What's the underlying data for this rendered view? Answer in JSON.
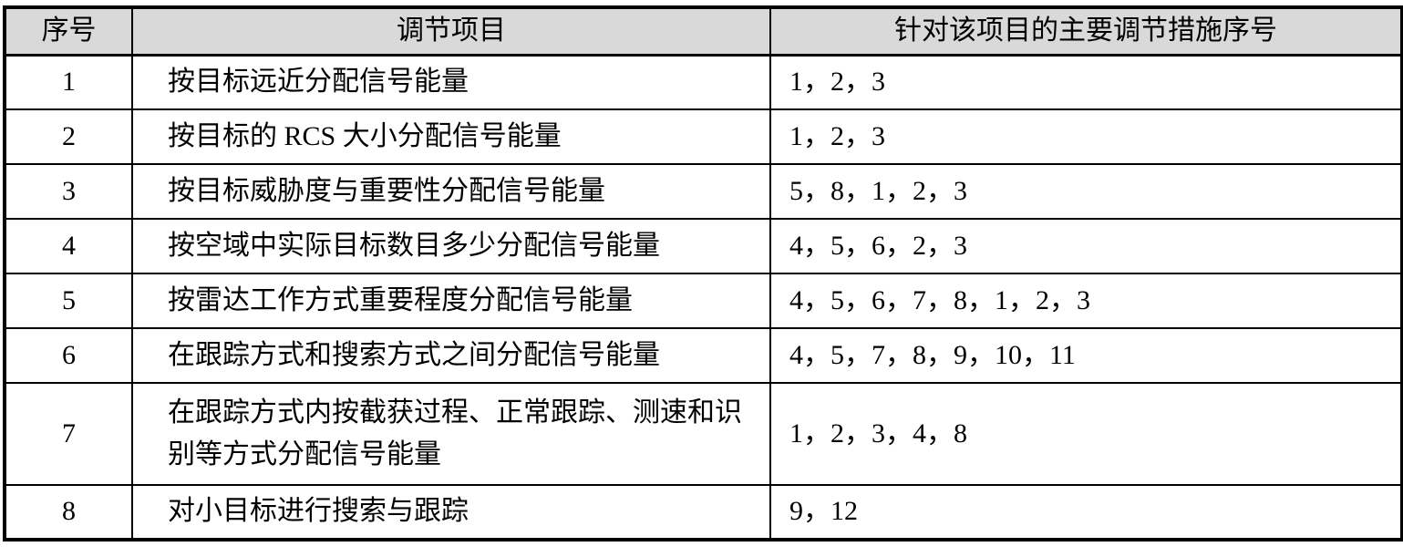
{
  "table": {
    "header_bg": "#d9d9d9",
    "border_color": "#000000",
    "headers": {
      "no": "序号",
      "item": "调节项目",
      "measures": "针对该项目的主要调节措施序号"
    },
    "rows": [
      {
        "no": "1",
        "item": "按目标远近分配信号能量",
        "measures": "1，2，3"
      },
      {
        "no": "2",
        "item": "按目标的 RCS 大小分配信号能量",
        "measures": "1，2，3"
      },
      {
        "no": "3",
        "item": "按目标威胁度与重要性分配信号能量",
        "measures": "5，8，1，2，3"
      },
      {
        "no": "4",
        "item": "按空域中实际目标数目多少分配信号能量",
        "measures": "4，5，6，2，3"
      },
      {
        "no": "5",
        "item": "按雷达工作方式重要程度分配信号能量",
        "measures": "4，5，6，7，8，1，2，3"
      },
      {
        "no": "6",
        "item": "在跟踪方式和搜索方式之间分配信号能量",
        "measures": "4，5，7，8，9，10，11"
      },
      {
        "no": "7",
        "item": "在跟踪方式内按截获过程、正常跟踪、测速和识别等方式分配信号能量",
        "measures": "1，2，3，4，8"
      },
      {
        "no": "8",
        "item": "对小目标进行搜索与跟踪",
        "measures": "9，12"
      }
    ]
  }
}
